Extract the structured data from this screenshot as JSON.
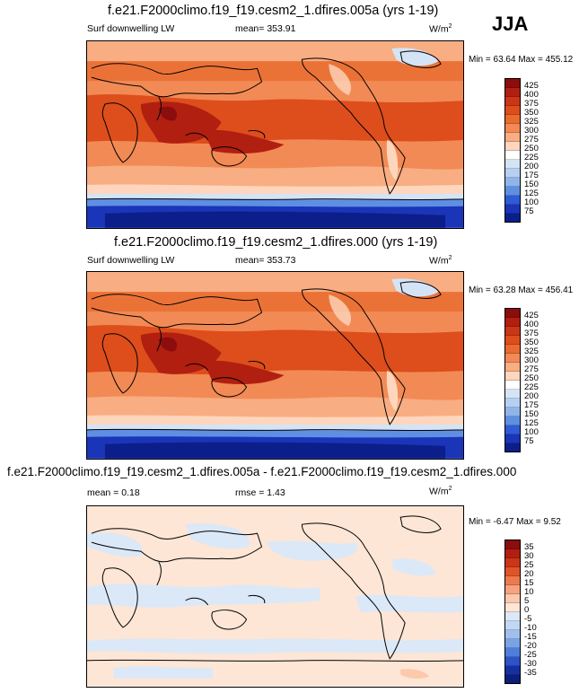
{
  "season": "JJA",
  "units_prefix": "W/m",
  "units_exp": "2",
  "panels": [
    {
      "title": "f.e21.F2000climo.f19_f19.cesm2_1.dfires.005a (yrs 1-19)",
      "variable": "Surf downwelling LW",
      "stat1": "mean= 353.91",
      "stat2": "",
      "minmax": "Min =  63.64 Max = 455.12",
      "levels": [
        "425",
        "400",
        "375",
        "350",
        "325",
        "300",
        "275",
        "250",
        "225",
        "200",
        "175",
        "150",
        "125",
        "100",
        "75"
      ]
    },
    {
      "title": "f.e21.F2000climo.f19_f19.cesm2_1.dfires.000 (yrs 1-19)",
      "variable": "Surf downwelling LW",
      "stat1": "mean= 353.73",
      "stat2": "",
      "minmax": "Min =  63.28 Max = 456.41",
      "levels": [
        "425",
        "400",
        "375",
        "350",
        "325",
        "300",
        "275",
        "250",
        "225",
        "200",
        "175",
        "150",
        "125",
        "100",
        "75"
      ]
    },
    {
      "title": "f.e21.F2000climo.f19_f19.cesm2_1.dfires.005a - f.e21.F2000climo.f19_f19.cesm2_1.dfires.000",
      "variable": "",
      "stat1": "mean =   0.18",
      "stat2": "rmse =   1.43",
      "minmax": "Min =  -6.47 Max =   9.52",
      "levels": [
        "35",
        "30",
        "25",
        "20",
        "15",
        "10",
        "5",
        "0",
        "-5",
        "-10",
        "-15",
        "-20",
        "-25",
        "-30",
        "-35"
      ]
    }
  ],
  "colors": {
    "abs_scale": [
      "#8b0d0d",
      "#b11f10",
      "#cc3515",
      "#dd4e1c",
      "#e96b30",
      "#f28a55",
      "#f8ad82",
      "#fdd6bd",
      "#ffffff",
      "#d4e4f6",
      "#b5d0f1",
      "#8fb5ea",
      "#5f8fe3",
      "#2f5bd6",
      "#1a35b8",
      "#0c1e8a"
    ],
    "diff_scale": [
      "#8b0d0d",
      "#b11f10",
      "#cc3515",
      "#e0542a",
      "#ed7a4e",
      "#f6a27f",
      "#fcc9ad",
      "#fde6d6",
      "#dbe8f8",
      "#c2d7f3",
      "#9fbfee",
      "#7aa3e6",
      "#4f7ddb",
      "#2c53c8",
      "#17309f",
      "#0c1e7a"
    ]
  }
}
